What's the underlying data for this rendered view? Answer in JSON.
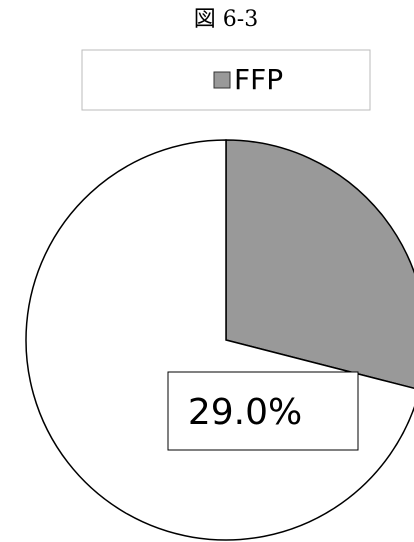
{
  "chart_data": {
    "type": "pie",
    "title": "図 6-3",
    "categories": [
      "FFP",
      null
    ],
    "values": [
      29.0,
      71.0
    ],
    "value_labels": [
      "29.0%",
      null
    ],
    "colors": [
      "#999999",
      "#ffffff"
    ],
    "start_angle": 0,
    "direction": "clockwise"
  }
}
